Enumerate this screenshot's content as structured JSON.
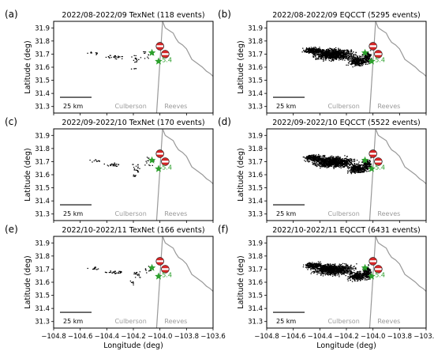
{
  "figure": {
    "xlabel": "Longitude (deg)",
    "ylabel": "Latitude (deg)",
    "x_ticks": [
      "−104.8",
      "−104.6",
      "−104.4",
      "−104.2",
      "−104.0",
      "−103.8",
      "−103.6"
    ],
    "y_ticks": [
      "31.3",
      "31.4",
      "31.5",
      "31.6",
      "31.7",
      "31.8",
      "31.9"
    ],
    "scalebar_label": "25 km",
    "county_left": "Culberson",
    "county_right": "Reeves",
    "magnitude_label": "5.4",
    "colors": {
      "events": "#000000",
      "star": "#2ca02c",
      "county_line": "#999999",
      "beachball": "#d62728"
    }
  },
  "chart_data": [
    {
      "type": "scatter",
      "panel_label": "(a)",
      "title": "2022/08-2022/09 TexNet (118 events)",
      "catalog": "TexNet",
      "event_count": 118,
      "xlim": [
        -104.8,
        -103.6
      ],
      "ylim": [
        31.25,
        31.95
      ]
    },
    {
      "type": "scatter",
      "panel_label": "(b)",
      "title": "2022/08-2022/09 EQCCT (5295 events)",
      "catalog": "EQCCT",
      "event_count": 5295,
      "xlim": [
        -104.8,
        -103.6
      ],
      "ylim": [
        31.25,
        31.95
      ]
    },
    {
      "type": "scatter",
      "panel_label": "(c)",
      "title": "2022/09-2022/10 TexNet (170 events)",
      "catalog": "TexNet",
      "event_count": 170,
      "xlim": [
        -104.8,
        -103.6
      ],
      "ylim": [
        31.25,
        31.95
      ]
    },
    {
      "type": "scatter",
      "panel_label": "(d)",
      "title": "2022/09-2022/10 EQCCT (5522 events)",
      "catalog": "EQCCT",
      "event_count": 5522,
      "xlim": [
        -104.8,
        -103.6
      ],
      "ylim": [
        31.25,
        31.95
      ]
    },
    {
      "type": "scatter",
      "panel_label": "(e)",
      "title": "2022/10-2022/11 TexNet (166 events)",
      "catalog": "TexNet",
      "event_count": 166,
      "xlim": [
        -104.8,
        -103.6
      ],
      "ylim": [
        31.25,
        31.95
      ]
    },
    {
      "type": "scatter",
      "panel_label": "(f)",
      "title": "2022/10-2022/11 EQCCT (6431 events)",
      "catalog": "EQCCT",
      "event_count": 6431,
      "xlim": [
        -104.8,
        -103.6
      ],
      "ylim": [
        31.25,
        31.95
      ]
    }
  ]
}
